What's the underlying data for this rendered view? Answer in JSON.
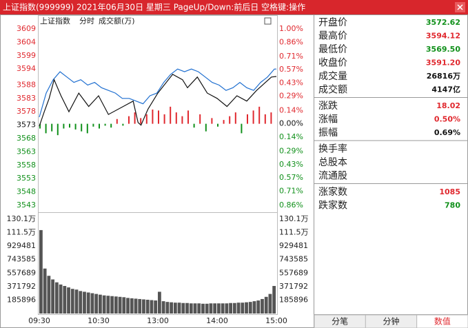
{
  "title_bar": {
    "text": "上证指数(999999)  2021年06月30日  星期三  PageUp/Down:前后日  空格键:操作"
  },
  "chart_data": {
    "type": "intraday",
    "header": [
      "上证指数",
      "分时",
      "成交额(万)"
    ],
    "xlim": [
      0,
      240
    ],
    "xticks": [
      {
        "value": 0,
        "label": "09:30"
      },
      {
        "value": 60,
        "label": "10:30"
      },
      {
        "value": 120,
        "label": "13:00"
      },
      {
        "value": 180,
        "label": "14:00"
      },
      {
        "value": 240,
        "label": "15:00"
      }
    ],
    "ylim": [
      3543,
      3609
    ],
    "yticks": [
      3609,
      3604,
      3599,
      3594,
      3588,
      3583,
      3578,
      3573,
      3568,
      3563,
      3558,
      3553,
      3548,
      3543
    ],
    "y2lim": [
      -0.86,
      1.0
    ],
    "y2ticks": [
      {
        "value": 1.0,
        "label": "1.00%"
      },
      {
        "value": 0.86,
        "label": "0.86%"
      },
      {
        "value": 0.71,
        "label": "0.71%"
      },
      {
        "value": 0.57,
        "label": "0.57%"
      },
      {
        "value": 0.43,
        "label": "0.43%"
      },
      {
        "value": 0.29,
        "label": "0.29%"
      },
      {
        "value": 0.14,
        "label": "0.14%"
      },
      {
        "value": 0.0,
        "label": "0.00%"
      },
      {
        "value": -0.14,
        "label": "0.14%"
      },
      {
        "value": -0.29,
        "label": "0.29%"
      },
      {
        "value": -0.43,
        "label": "0.43%"
      },
      {
        "value": -0.57,
        "label": "0.57%"
      },
      {
        "value": -0.71,
        "label": "0.71%"
      },
      {
        "value": -0.86,
        "label": "0.86%"
      }
    ],
    "up_color": "#e0282e",
    "down_color": "#10901a",
    "series": [
      {
        "color": "#1f6fd0",
        "x": [
          0,
          7,
          14,
          21,
          28,
          35,
          42,
          49,
          56,
          63,
          70,
          77,
          84,
          91,
          98,
          105,
          112,
          119,
          126,
          133,
          140,
          147,
          154,
          161,
          168,
          175,
          182,
          189,
          196,
          203,
          210,
          217,
          224,
          231,
          238,
          240
        ],
        "values": [
          3576,
          3585,
          3590,
          3593,
          3591,
          3589,
          3590,
          3588,
          3589,
          3587,
          3586,
          3585,
          3583,
          3583,
          3582,
          3581,
          3584,
          3585,
          3589,
          3592,
          3594,
          3593,
          3594,
          3593,
          3591,
          3589,
          3588,
          3586,
          3587,
          3589,
          3587,
          3586,
          3589,
          3591,
          3594,
          3594
        ]
      },
      {
        "color": "#111111",
        "x": [
          0,
          5,
          10,
          15,
          22,
          30,
          40,
          50,
          60,
          70,
          85,
          95,
          100,
          103,
          110,
          120,
          135,
          145,
          150,
          160,
          170,
          180,
          190,
          200,
          210,
          220,
          235,
          240
        ],
        "values": [
          3572.6,
          3578,
          3583,
          3590,
          3584,
          3578,
          3585,
          3580,
          3584,
          3577,
          3580,
          3582,
          3574,
          3573,
          3579,
          3585,
          3592,
          3590,
          3587,
          3591,
          3585,
          3583,
          3580,
          3584,
          3582,
          3586,
          3591,
          3591.2
        ]
      }
    ],
    "breadth": {
      "x": [
        0,
        6,
        12,
        18,
        24,
        30,
        36,
        42,
        48,
        54,
        60,
        66,
        72,
        78,
        84,
        90,
        96,
        102,
        108,
        114,
        120,
        126,
        132,
        138,
        144,
        150,
        156,
        162,
        168,
        174,
        180,
        186,
        192,
        198,
        204,
        210,
        216,
        222,
        228,
        234
      ],
      "values": [
        -0.05,
        -0.1,
        -0.08,
        -0.12,
        -0.05,
        -0.04,
        -0.06,
        -0.08,
        -0.1,
        -0.03,
        -0.05,
        -0.02,
        -0.04,
        0.05,
        -0.02,
        0.08,
        0.12,
        0.06,
        0.1,
        0.15,
        0.14,
        0.1,
        0.18,
        0.12,
        0.08,
        0.14,
        -0.04,
        0.1,
        -0.08,
        0.06,
        -0.03,
        0.04,
        0.08,
        0.12,
        -0.1,
        0.1,
        0.14,
        0.18,
        0.1,
        0.12
      ]
    },
    "volume": {
      "color": "#555555",
      "x": [
        0,
        4,
        8,
        12,
        16,
        20,
        24,
        28,
        32,
        36,
        40,
        44,
        48,
        52,
        56,
        60,
        64,
        68,
        72,
        76,
        80,
        84,
        88,
        92,
        96,
        100,
        104,
        108,
        112,
        116,
        120,
        124,
        128,
        132,
        136,
        140,
        144,
        148,
        152,
        156,
        160,
        164,
        168,
        172,
        176,
        180,
        184,
        188,
        192,
        196,
        200,
        204,
        208,
        212,
        216,
        220,
        224,
        228,
        232,
        236
      ],
      "values": [
        1150000,
        620000,
        520000,
        470000,
        430000,
        400000,
        380000,
        360000,
        340000,
        330000,
        310000,
        300000,
        290000,
        280000,
        270000,
        260000,
        250000,
        245000,
        240000,
        235000,
        230000,
        225000,
        215000,
        210000,
        205000,
        200000,
        195000,
        190000,
        185000,
        180000,
        300000,
        170000,
        160000,
        155000,
        150000,
        150000,
        145000,
        145000,
        140000,
        140000,
        140000,
        135000,
        135000,
        140000,
        140000,
        140000,
        140000,
        140000,
        145000,
        145000,
        150000,
        150000,
        155000,
        160000,
        170000,
        180000,
        200000,
        230000,
        270000,
        380000
      ],
      "ylim": [
        0,
        1301272
      ],
      "yticks": [
        {
          "value": 1301272,
          "label": "130.1万"
        },
        {
          "value": 1115377,
          "label": "111.5万"
        },
        929481,
        743585,
        557689,
        371792,
        185896
      ]
    }
  },
  "quote_groups": [
    [
      {
        "label": "开盘价",
        "value": "3572.62",
        "color": "#10901a"
      },
      {
        "label": "最高价",
        "value": "3594.12",
        "color": "#e0282e"
      },
      {
        "label": "最低价",
        "value": "3569.50",
        "color": "#10901a"
      },
      {
        "label": "收盘价",
        "value": "3591.20",
        "color": "#e0282e"
      },
      {
        "label": "成交量",
        "value": "26816万",
        "color": "#111111"
      },
      {
        "label": "成交额",
        "value": "4147亿",
        "color": "#111111"
      }
    ],
    [
      {
        "label": "涨跌",
        "value": "18.02",
        "color": "#e0282e"
      },
      {
        "label": "涨幅",
        "value": "0.50%",
        "color": "#e0282e"
      },
      {
        "label": "振幅",
        "value": "0.69%",
        "color": "#111111"
      }
    ],
    [
      {
        "label": "换手率"
      },
      {
        "label": "总股本"
      },
      {
        "label": "流通股"
      }
    ],
    [
      {
        "label": "涨家数",
        "value": "1085",
        "color": "#e0282e"
      },
      {
        "label": "跌家数",
        "value": "780",
        "color": "#10901a"
      }
    ]
  ],
  "tabs": [
    "分笔",
    "分钟",
    "数值"
  ],
  "active_tab": 2
}
